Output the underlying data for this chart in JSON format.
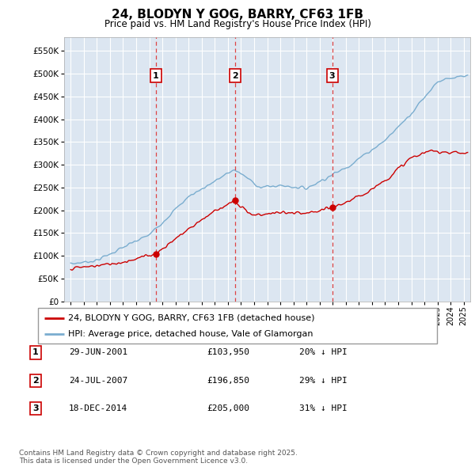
{
  "title": "24, BLODYN Y GOG, BARRY, CF63 1FB",
  "subtitle": "Price paid vs. HM Land Registry's House Price Index (HPI)",
  "legend_line1": "24, BLODYN Y GOG, BARRY, CF63 1FB (detached house)",
  "legend_line2": "HPI: Average price, detached house, Vale of Glamorgan",
  "red_color": "#cc0000",
  "blue_color": "#7aadcf",
  "background_color": "#dce6f1",
  "transactions": [
    {
      "num": 1,
      "date": "29-JUN-2001",
      "price": 103950,
      "year": 2001.49,
      "pct": "20%",
      "dir": "↓"
    },
    {
      "num": 2,
      "date": "24-JUL-2007",
      "price": 196850,
      "year": 2007.56,
      "pct": "29%",
      "dir": "↓"
    },
    {
      "num": 3,
      "date": "18-DEC-2014",
      "price": 205000,
      "year": 2014.96,
      "pct": "31%",
      "dir": "↓"
    }
  ],
  "vline_dates": [
    2001.49,
    2007.56,
    2014.96
  ],
  "ylim": [
    0,
    580000
  ],
  "xlim_start": 1994.5,
  "xlim_end": 2025.5,
  "yticks": [
    0,
    50000,
    100000,
    150000,
    200000,
    250000,
    300000,
    350000,
    400000,
    450000,
    500000,
    550000
  ],
  "grid_color": "#ffffff",
  "footer_text": "Contains HM Land Registry data © Crown copyright and database right 2025.\nThis data is licensed under the Open Government Licence v3.0."
}
